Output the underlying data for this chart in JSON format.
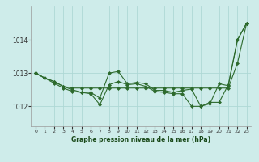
{
  "title": "Graphe pression niveau de la mer (hPa)",
  "background_color": "#ceecea",
  "grid_color": "#aed8d5",
  "line_color": "#2d6a2d",
  "marker_color": "#2d6a2d",
  "xlim": [
    -0.5,
    23.5
  ],
  "ylim": [
    1011.4,
    1015.0
  ],
  "yticks": [
    1012,
    1013,
    1014
  ],
  "xticks": [
    0,
    1,
    2,
    3,
    4,
    5,
    6,
    7,
    8,
    9,
    10,
    11,
    12,
    13,
    14,
    15,
    16,
    17,
    18,
    19,
    20,
    21,
    22,
    23
  ],
  "series": [
    [
      1013.0,
      1012.85,
      1012.75,
      1012.6,
      1012.55,
      1012.55,
      1012.55,
      1012.55,
      1012.55,
      1012.55,
      1012.55,
      1012.55,
      1012.55,
      1012.55,
      1012.55,
      1012.55,
      1012.55,
      1012.55,
      1012.55,
      1012.55,
      1012.55,
      1012.55,
      1013.3,
      1014.5
    ],
    [
      1013.0,
      1012.85,
      1012.75,
      1012.6,
      1012.5,
      1012.42,
      1012.38,
      1012.05,
      1012.65,
      1012.75,
      1012.65,
      1012.68,
      1012.6,
      1012.45,
      1012.42,
      1012.38,
      1012.38,
      1012.0,
      1012.0,
      1012.12,
      1012.12,
      1012.65,
      1014.0,
      1014.5
    ],
    [
      1013.0,
      1012.85,
      1012.7,
      1012.55,
      1012.45,
      1012.42,
      1012.42,
      1012.25,
      1013.0,
      1013.05,
      1012.68,
      1012.72,
      1012.68,
      1012.48,
      1012.48,
      1012.42,
      1012.48,
      1012.52,
      1012.0,
      1012.08,
      1012.68,
      1012.62,
      1014.0,
      1014.5
    ]
  ]
}
